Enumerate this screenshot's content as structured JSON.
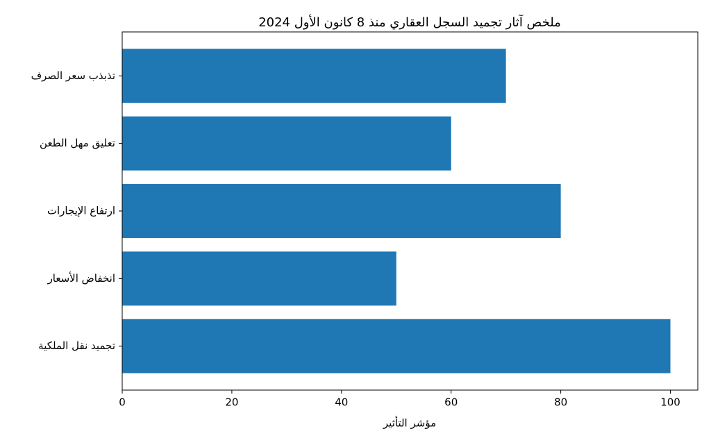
{
  "chart_data": {
    "type": "barh",
    "title": "ملخص آثار تجميد السجل العقاري منذ 8 كانون الأول 2024",
    "x_label": "مؤشر التأثير",
    "categories": [
      "تجميد نقل الملكية",
      "انخفاض الأسعار",
      "ارتفاع الإيجارات",
      "تعليق مهل الطعن",
      "تذبذب سعر الصرف"
    ],
    "values": [
      100,
      50,
      80,
      60,
      70
    ],
    "color": "#1f77b4",
    "xlim": [
      0,
      105
    ],
    "xticks": [
      0,
      20,
      40,
      60,
      80,
      100
    ],
    "grid": false
  }
}
